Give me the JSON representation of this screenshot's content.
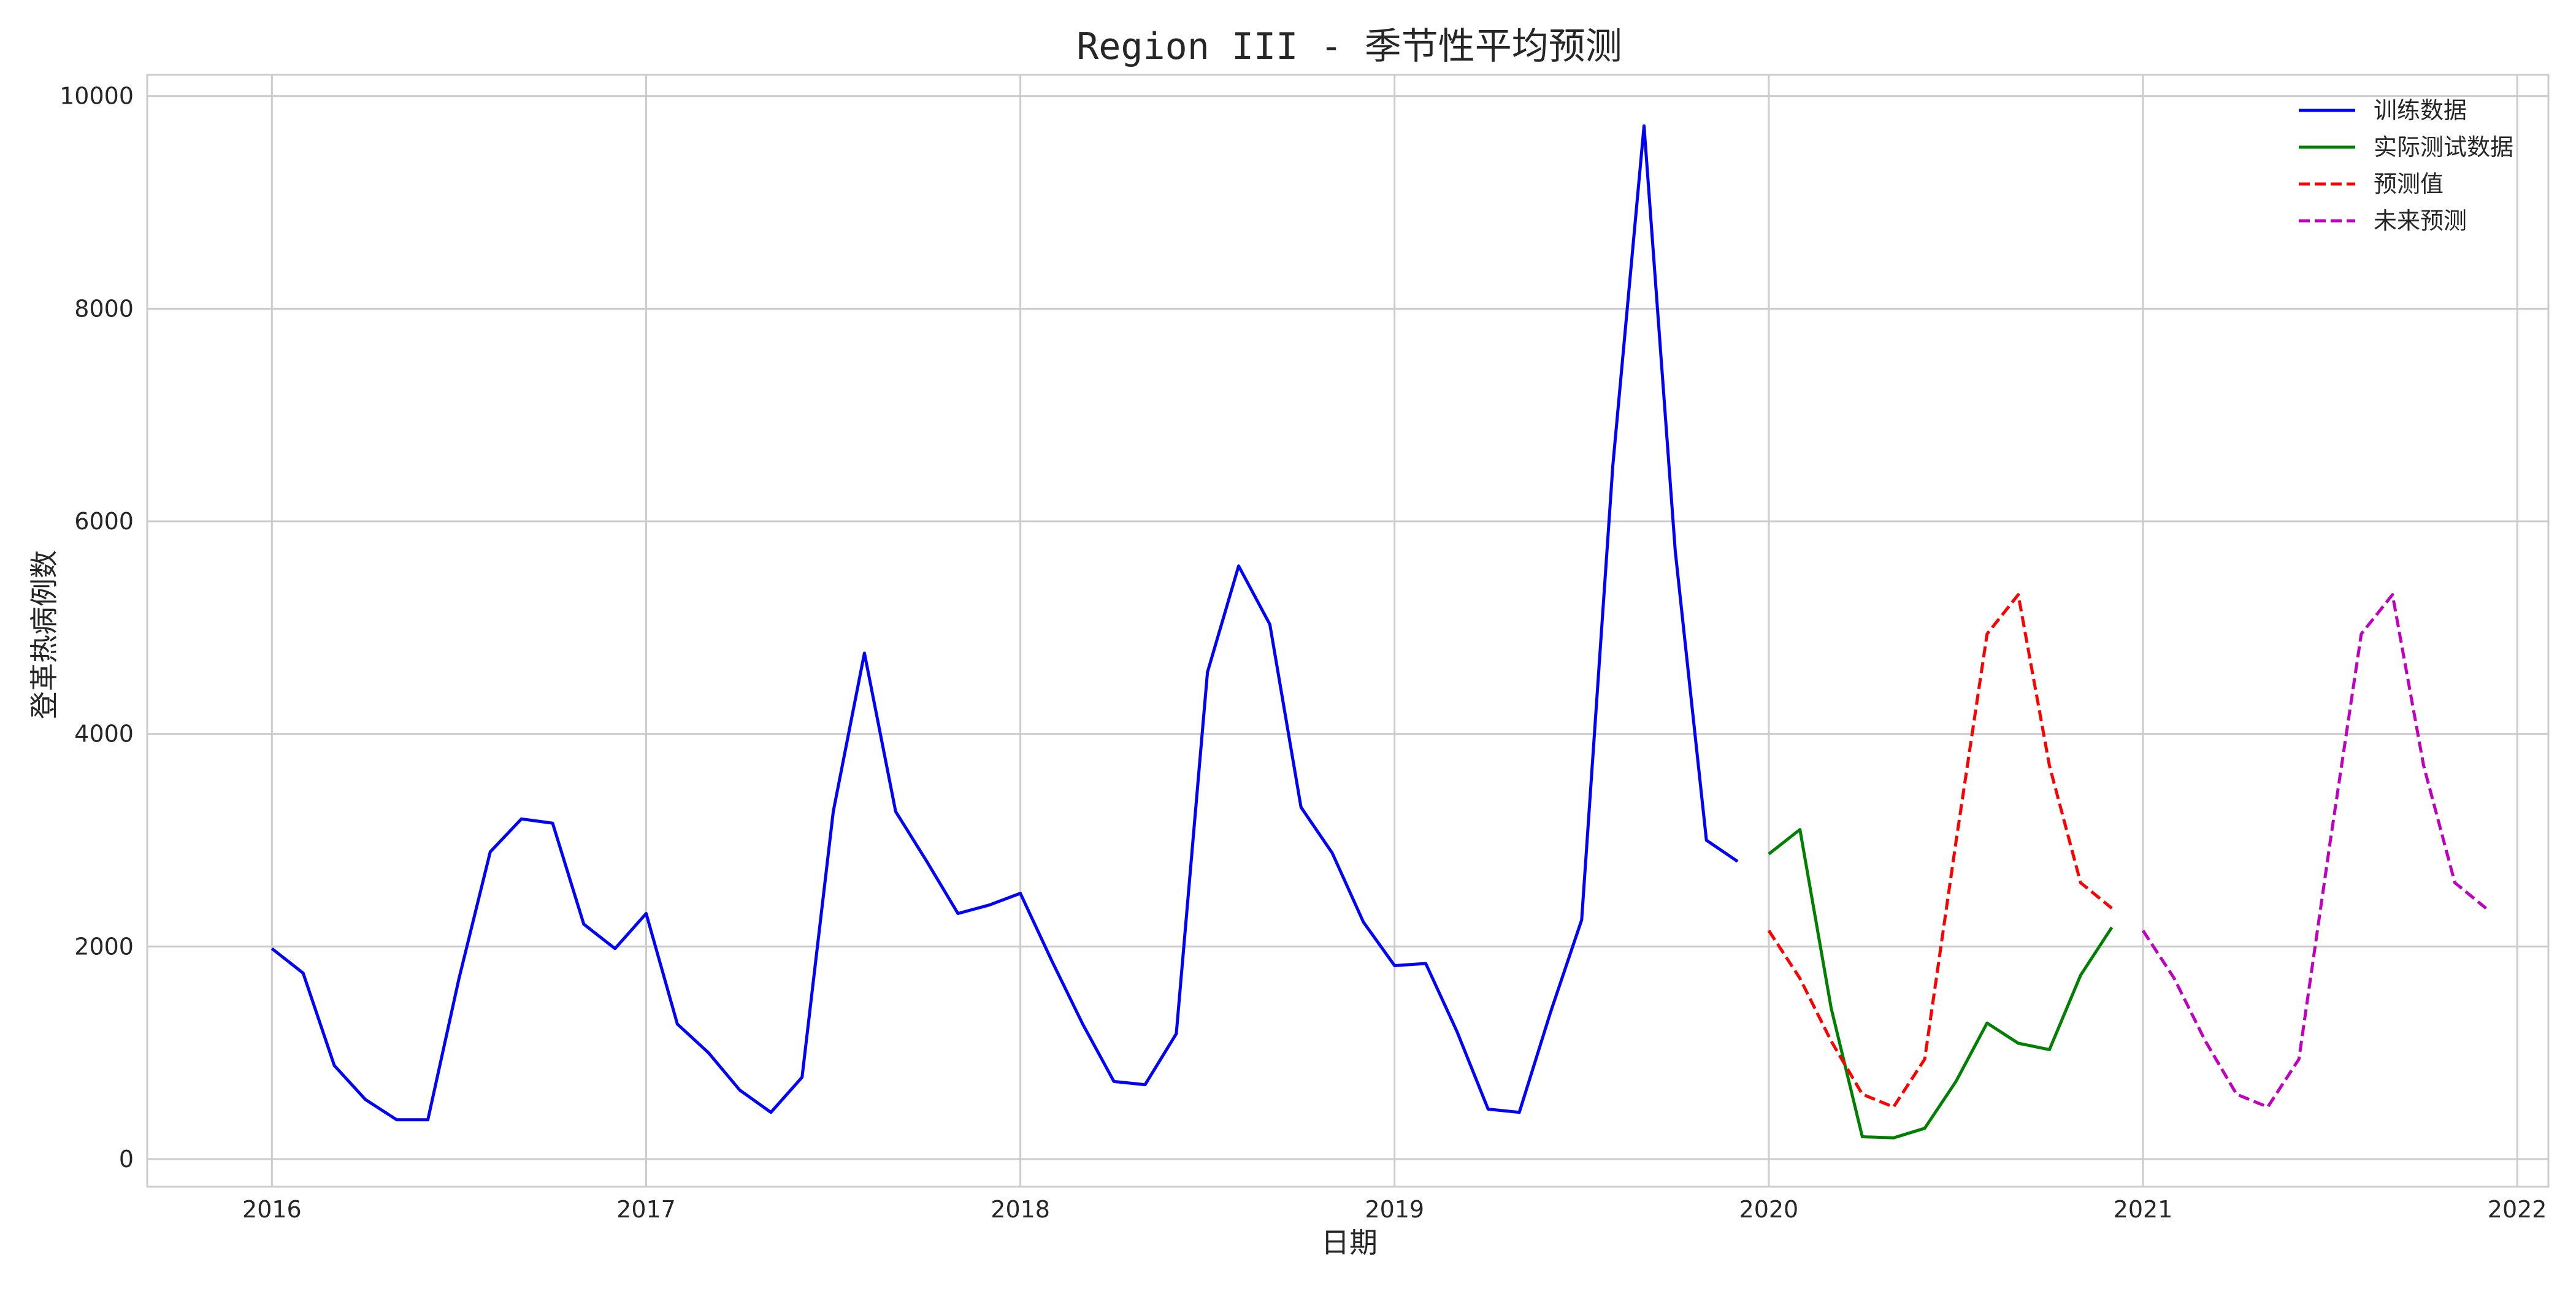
{
  "chart_data": {
    "type": "line",
    "title": "Region III - 季节性平均预测",
    "xlabel": "日期",
    "ylabel": "登革热病例数",
    "x_ticks": [
      "2016",
      "2017",
      "2018",
      "2019",
      "2020",
      "2021",
      "2022"
    ],
    "y_ticks": [
      "0",
      "2000",
      "4000",
      "6000",
      "8000",
      "10000"
    ],
    "xlim": [
      "2015-09",
      "2022-02"
    ],
    "ylim": [
      -260,
      10200
    ],
    "grid": true,
    "legend_position": "top-right",
    "series": [
      {
        "name": "训练数据",
        "color": "#0000ff",
        "dash": "solid",
        "x": [
          "2016-01",
          "2016-02",
          "2016-03",
          "2016-04",
          "2016-05",
          "2016-06",
          "2016-07",
          "2016-08",
          "2016-09",
          "2016-10",
          "2016-11",
          "2016-12",
          "2017-01",
          "2017-02",
          "2017-03",
          "2017-04",
          "2017-05",
          "2017-06",
          "2017-07",
          "2017-08",
          "2017-09",
          "2017-10",
          "2017-11",
          "2017-12",
          "2018-01",
          "2018-02",
          "2018-03",
          "2018-04",
          "2018-05",
          "2018-06",
          "2018-07",
          "2018-08",
          "2018-09",
          "2018-10",
          "2018-11",
          "2018-12",
          "2019-01",
          "2019-02",
          "2019-03",
          "2019-04",
          "2019-05",
          "2019-06",
          "2019-07",
          "2019-08",
          "2019-09",
          "2019-10",
          "2019-11",
          "2019-12"
        ],
        "values": [
          1980,
          1750,
          880,
          560,
          370,
          370,
          1700,
          2890,
          3200,
          3160,
          2210,
          1980,
          2310,
          1270,
          1000,
          650,
          440,
          770,
          3270,
          4760,
          3270,
          2800,
          2310,
          2390,
          2500,
          1870,
          1270,
          730,
          700,
          1180,
          4580,
          5580,
          5030,
          3310,
          2880,
          2230,
          1820,
          1840,
          1200,
          470,
          440,
          1380,
          2250,
          6530,
          9720,
          5720,
          3000,
          2800
        ]
      },
      {
        "name": "实际测试数据",
        "color": "#008000",
        "dash": "solid",
        "x": [
          "2020-01",
          "2020-02",
          "2020-03",
          "2020-04",
          "2020-05",
          "2020-06",
          "2020-07",
          "2020-08",
          "2020-09",
          "2020-10",
          "2020-11",
          "2020-12"
        ],
        "values": [
          2870,
          3100,
          1420,
          210,
          200,
          290,
          730,
          1280,
          1090,
          1030,
          1730,
          2180
        ]
      },
      {
        "name": "预测值",
        "color": "#ff0000",
        "dash": "dashed",
        "x": [
          "2020-01",
          "2020-02",
          "2020-03",
          "2020-04",
          "2020-05",
          "2020-06",
          "2020-07",
          "2020-08",
          "2020-09",
          "2020-10",
          "2020-11",
          "2020-12"
        ],
        "values": [
          2150,
          1700,
          1110,
          610,
          490,
          940,
          2980,
          4940,
          5310,
          3700,
          2600,
          2360
        ]
      },
      {
        "name": "未来预测",
        "color": "#bf00bf",
        "dash": "dashed",
        "x": [
          "2021-01",
          "2021-02",
          "2021-03",
          "2021-04",
          "2021-05",
          "2021-06",
          "2021-07",
          "2021-08",
          "2021-09",
          "2021-10",
          "2021-11",
          "2021-12"
        ],
        "values": [
          2150,
          1700,
          1110,
          610,
          490,
          940,
          2980,
          4940,
          5310,
          3700,
          2600,
          2360
        ]
      }
    ]
  }
}
